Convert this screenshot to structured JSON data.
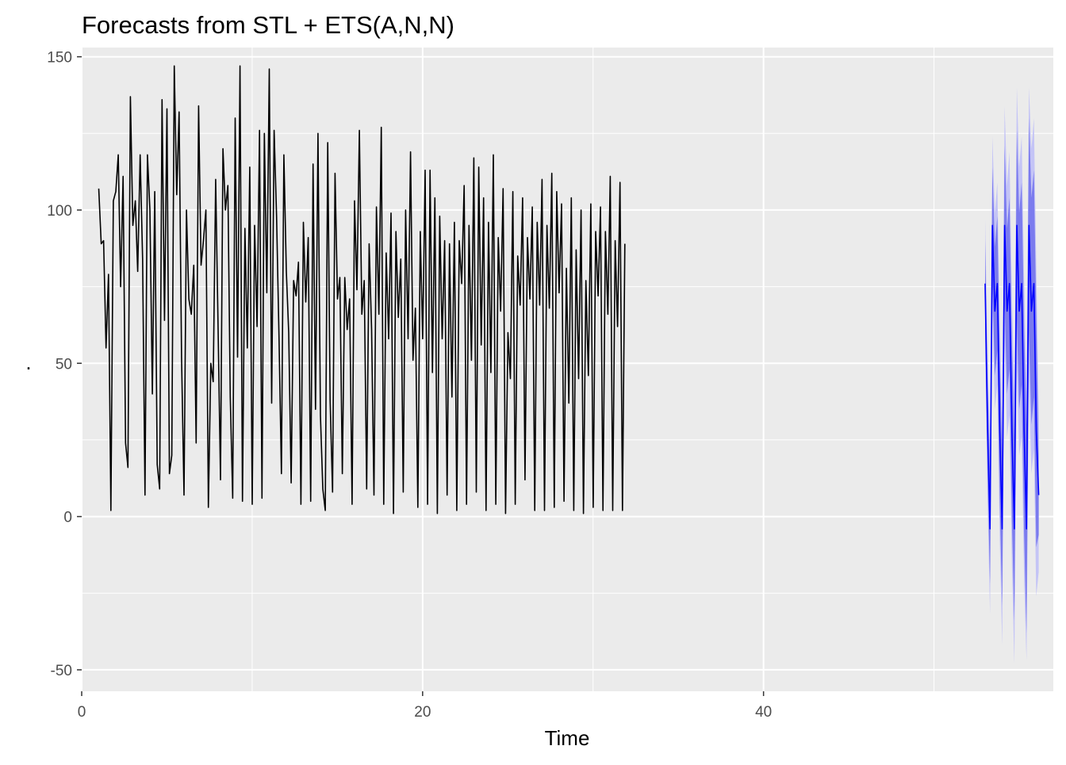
{
  "chart_data": {
    "type": "line",
    "title": "Forecasts from STL +  ETS(A,N,N)",
    "xlabel": "Time",
    "ylabel": ".",
    "xlim": [
      0,
      57
    ],
    "ylim": [
      -57,
      153
    ],
    "x_ticks": [
      0,
      20,
      40
    ],
    "x_minor_ticks": [
      10,
      30,
      50
    ],
    "y_ticks": [
      -50,
      0,
      50,
      100,
      150
    ],
    "y_minor_ticks": [
      -25,
      25,
      75,
      125
    ],
    "grid": true,
    "background": "#EBEBEB",
    "colors": {
      "series": "#000000",
      "forecast": "#0000FF",
      "pi80": "#7B7BEE",
      "pi95": "#C4C4F6",
      "grid": "#FFFFFF",
      "tick_label": "#4D4D4D"
    },
    "series": [
      {
        "name": "observed",
        "x_start": 1,
        "x_step": 0.1429,
        "values": [
          107,
          89,
          90,
          55,
          79,
          2,
          103,
          106,
          118,
          75,
          111,
          24,
          16,
          137,
          95,
          103,
          80,
          118,
          84,
          7,
          118,
          100,
          40,
          106,
          17,
          9,
          136,
          64,
          133,
          14,
          20,
          147,
          105,
          132,
          52,
          7,
          100,
          71,
          66,
          82,
          24,
          134,
          82,
          90,
          100,
          3,
          50,
          44,
          110,
          61,
          12,
          120,
          100,
          108,
          39,
          6,
          130,
          52,
          147,
          5,
          94,
          55,
          114,
          4,
          95,
          62,
          126,
          6,
          125,
          73,
          146,
          37,
          126,
          98,
          58,
          14,
          118,
          80,
          60,
          11,
          77,
          72,
          83,
          4,
          96,
          70,
          91,
          5,
          115,
          35,
          125,
          33,
          9,
          2,
          122,
          38,
          8,
          112,
          71,
          78,
          14,
          78,
          61,
          71,
          4,
          103,
          74,
          126,
          66,
          77,
          9,
          89,
          61,
          7,
          101,
          66,
          127,
          4,
          86,
          58,
          99,
          1,
          93,
          65,
          84,
          8,
          100,
          58,
          119,
          51,
          68,
          3,
          93,
          58,
          113,
          4,
          113,
          47,
          104,
          1,
          98,
          58,
          90,
          7,
          89,
          39,
          96,
          2,
          90,
          76,
          108,
          4,
          95,
          51,
          117,
          8,
          114,
          56,
          104,
          2,
          96,
          47,
          118,
          4,
          91,
          67,
          107,
          1,
          60,
          45,
          106,
          4,
          85,
          69,
          104,
          12,
          91,
          71,
          101,
          2,
          96,
          69,
          110,
          2,
          95,
          68,
          112,
          3,
          106,
          73,
          102,
          5,
          81,
          37,
          104,
          2,
          87,
          45,
          100,
          1,
          77,
          46,
          102,
          3,
          93,
          72,
          101,
          2,
          93,
          66,
          111,
          2,
          90,
          62,
          109,
          2,
          89
        ]
      },
      {
        "name": "forecast",
        "x_start": 53,
        "x_step": 0.1429,
        "values": [
          76,
          29,
          -4,
          95,
          67,
          76,
          28,
          -4,
          95,
          67,
          76,
          28,
          -4,
          95,
          67,
          76,
          28,
          -4,
          95,
          67,
          76,
          28,
          7
        ]
      },
      {
        "name": "80% interval",
        "x_start": 53,
        "x_step": 0.1429,
        "lower": [
          62,
          13,
          -22,
          76,
          46,
          54,
          4,
          -29,
          69,
          40,
          48,
          -1,
          -34,
          64,
          35,
          43,
          -6,
          -38,
          60,
          30,
          39,
          -10,
          -6
        ],
        "upper": [
          90,
          45,
          14,
          114,
          88,
          98,
          52,
          21,
          121,
          94,
          104,
          57,
          26,
          126,
          99,
          109,
          62,
          30,
          130,
          104,
          113,
          66,
          20
        ]
      },
      {
        "name": "95% interval",
        "x_start": 53,
        "x_step": 0.1429,
        "lower": [
          55,
          5,
          -32,
          66,
          35,
          43,
          -8,
          -42,
          56,
          26,
          33,
          -16,
          -48,
          48,
          20,
          26,
          -21,
          -47,
          44,
          14,
          22,
          -26,
          -18
        ],
        "upper": [
          97,
          53,
          24,
          124,
          99,
          109,
          64,
          34,
          134,
          108,
          119,
          72,
          40,
          140,
          114,
          124,
          77,
          40,
          140,
          120,
          130,
          82,
          32
        ]
      }
    ]
  }
}
